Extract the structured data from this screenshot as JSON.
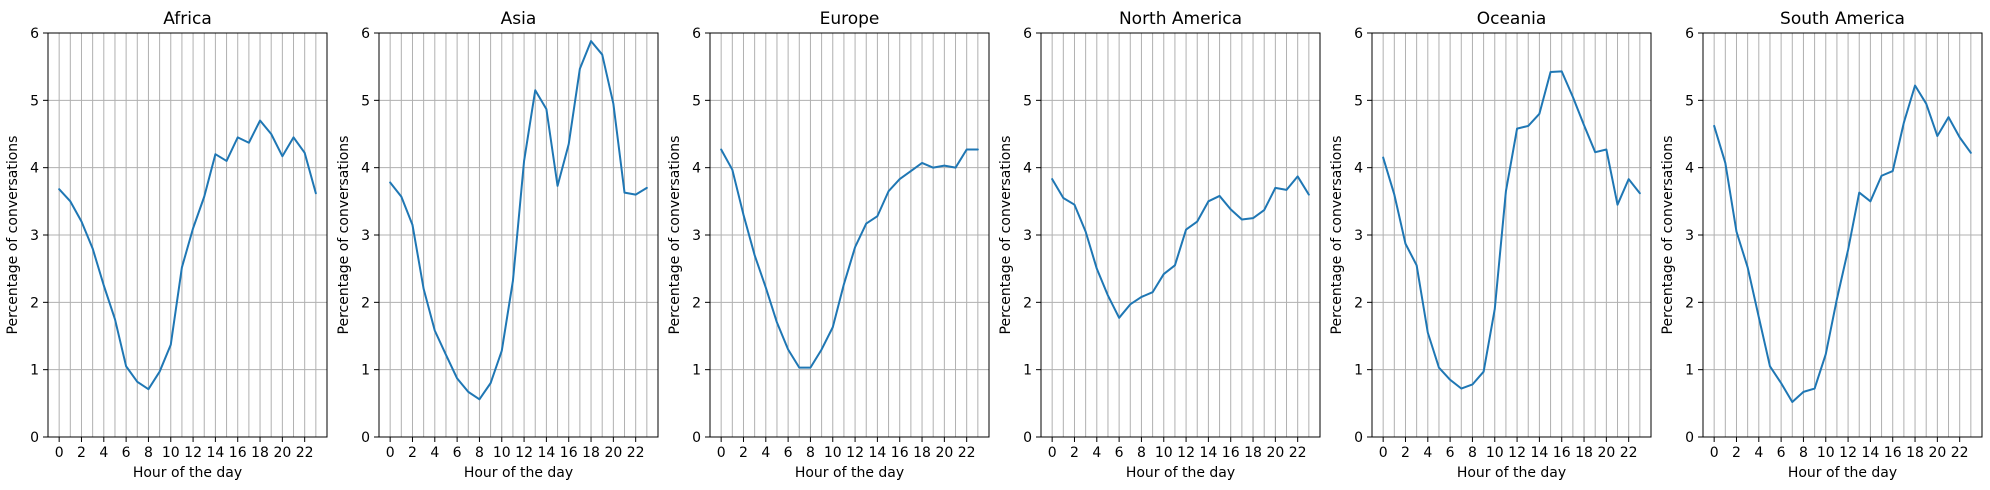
{
  "chart_data": [
    {
      "type": "line",
      "title": "Africa",
      "xlabel": "Hour of the day",
      "ylabel": "Percentage of conversations",
      "x": [
        0,
        1,
        2,
        3,
        4,
        5,
        6,
        7,
        8,
        9,
        10,
        11,
        12,
        13,
        14,
        15,
        16,
        17,
        18,
        19,
        20,
        21,
        22,
        23
      ],
      "values": [
        3.68,
        3.5,
        3.2,
        2.8,
        2.25,
        1.75,
        1.05,
        0.82,
        0.71,
        0.97,
        1.37,
        2.52,
        3.1,
        3.57,
        4.2,
        4.1,
        4.45,
        4.37,
        4.7,
        4.5,
        4.17,
        4.45,
        4.22,
        3.62
      ],
      "xticks": [
        0,
        2,
        4,
        6,
        8,
        10,
        12,
        14,
        16,
        18,
        20,
        22
      ],
      "xlim": [
        -1,
        24
      ],
      "ylim": [
        0,
        6
      ],
      "yticks": [
        0,
        1,
        2,
        3,
        4,
        5,
        6
      ],
      "grid": true,
      "color": "#1f77b4"
    },
    {
      "type": "line",
      "title": "Asia",
      "xlabel": "Hour of the day",
      "ylabel": "Percentage of conversations",
      "x": [
        0,
        1,
        2,
        3,
        4,
        5,
        6,
        7,
        8,
        9,
        10,
        11,
        12,
        13,
        14,
        15,
        16,
        17,
        18,
        19,
        20,
        21,
        22,
        23
      ],
      "values": [
        3.78,
        3.57,
        3.15,
        2.2,
        1.58,
        1.22,
        0.87,
        0.67,
        0.56,
        0.8,
        1.28,
        2.32,
        4.1,
        5.15,
        4.87,
        3.73,
        4.35,
        5.47,
        5.88,
        5.68,
        4.95,
        3.63,
        3.6,
        3.7
      ],
      "xticks": [
        0,
        2,
        4,
        6,
        8,
        10,
        12,
        14,
        16,
        18,
        20,
        22
      ],
      "xlim": [
        -1,
        24
      ],
      "ylim": [
        0,
        6
      ],
      "yticks": [
        0,
        1,
        2,
        3,
        4,
        5,
        6
      ],
      "grid": true,
      "color": "#1f77b4"
    },
    {
      "type": "line",
      "title": "Europe",
      "xlabel": "Hour of the day",
      "ylabel": "Percentage of conversations",
      "x": [
        0,
        1,
        2,
        3,
        4,
        5,
        6,
        7,
        8,
        9,
        10,
        11,
        12,
        13,
        14,
        15,
        16,
        17,
        18,
        19,
        20,
        21,
        22,
        23
      ],
      "values": [
        4.27,
        3.97,
        3.3,
        2.7,
        2.22,
        1.7,
        1.3,
        1.03,
        1.03,
        1.3,
        1.63,
        2.27,
        2.82,
        3.17,
        3.28,
        3.65,
        3.83,
        3.95,
        4.07,
        4.0,
        4.03,
        4.0,
        4.27,
        4.27
      ],
      "xticks": [
        0,
        2,
        4,
        6,
        8,
        10,
        12,
        14,
        16,
        18,
        20,
        22
      ],
      "xlim": [
        -1,
        24
      ],
      "ylim": [
        0,
        6
      ],
      "yticks": [
        0,
        1,
        2,
        3,
        4,
        5,
        6
      ],
      "grid": true,
      "color": "#1f77b4"
    },
    {
      "type": "line",
      "title": "North America",
      "xlabel": "Hour of the day",
      "ylabel": "Percentage of conversations",
      "x": [
        0,
        1,
        2,
        3,
        4,
        5,
        6,
        7,
        8,
        9,
        10,
        11,
        12,
        13,
        14,
        15,
        16,
        17,
        18,
        19,
        20,
        21,
        22,
        23
      ],
      "values": [
        3.83,
        3.55,
        3.45,
        3.05,
        2.5,
        2.1,
        1.77,
        1.97,
        2.08,
        2.15,
        2.42,
        2.55,
        3.08,
        3.2,
        3.5,
        3.58,
        3.38,
        3.23,
        3.25,
        3.37,
        3.7,
        3.67,
        3.87,
        3.6
      ],
      "xticks": [
        0,
        2,
        4,
        6,
        8,
        10,
        12,
        14,
        16,
        18,
        20,
        22
      ],
      "xlim": [
        -1,
        24
      ],
      "ylim": [
        0,
        6
      ],
      "yticks": [
        0,
        1,
        2,
        3,
        4,
        5,
        6
      ],
      "grid": true,
      "color": "#1f77b4"
    },
    {
      "type": "line",
      "title": "Oceania",
      "xlabel": "Hour of the day",
      "ylabel": "Percentage of conversations",
      "x": [
        0,
        1,
        2,
        3,
        4,
        5,
        6,
        7,
        8,
        9,
        10,
        11,
        12,
        13,
        14,
        15,
        16,
        17,
        18,
        19,
        20,
        21,
        22,
        23
      ],
      "values": [
        4.15,
        3.6,
        2.87,
        2.55,
        1.55,
        1.03,
        0.85,
        0.72,
        0.78,
        0.97,
        1.9,
        3.65,
        4.58,
        4.62,
        4.8,
        5.42,
        5.43,
        5.05,
        4.63,
        4.23,
        4.27,
        3.45,
        3.83,
        3.62
      ],
      "xticks": [
        0,
        2,
        4,
        6,
        8,
        10,
        12,
        14,
        16,
        18,
        20,
        22
      ],
      "xlim": [
        -1,
        24
      ],
      "ylim": [
        0,
        6
      ],
      "yticks": [
        0,
        1,
        2,
        3,
        4,
        5,
        6
      ],
      "grid": true,
      "color": "#1f77b4"
    },
    {
      "type": "line",
      "title": "South America",
      "xlabel": "Hour of the day",
      "ylabel": "Percentage of conversations",
      "x": [
        0,
        1,
        2,
        3,
        4,
        5,
        6,
        7,
        8,
        9,
        10,
        11,
        12,
        13,
        14,
        15,
        16,
        17,
        18,
        19,
        20,
        21,
        22,
        23
      ],
      "values": [
        4.62,
        4.07,
        3.05,
        2.52,
        1.78,
        1.05,
        0.8,
        0.52,
        0.67,
        0.72,
        1.23,
        2.05,
        2.78,
        3.63,
        3.5,
        3.88,
        3.95,
        4.67,
        5.22,
        4.95,
        4.47,
        4.75,
        4.45,
        4.22
      ],
      "xticks": [
        0,
        2,
        4,
        6,
        8,
        10,
        12,
        14,
        16,
        18,
        20,
        22
      ],
      "xlim": [
        -1,
        24
      ],
      "ylim": [
        0,
        6
      ],
      "yticks": [
        0,
        1,
        2,
        3,
        4,
        5,
        6
      ],
      "grid": true,
      "color": "#1f77b4"
    }
  ]
}
